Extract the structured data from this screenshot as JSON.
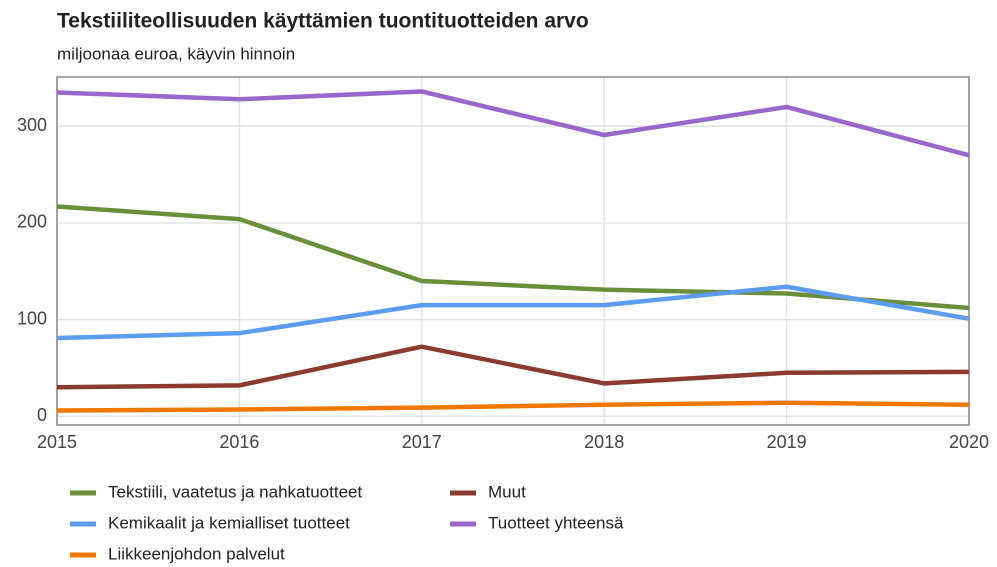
{
  "chart_data": {
    "type": "line",
    "title": "Tekstiiliteollisuuden käyttämien tuontituotteiden arvo",
    "subtitle": "miljoonaa euroa, käyvin hinnoin",
    "x": [
      2015,
      2016,
      2017,
      2018,
      2019,
      2020
    ],
    "xlim": [
      2015,
      2020
    ],
    "xticks": [
      2015,
      2016,
      2017,
      2018,
      2019,
      2020
    ],
    "ylim": [
      -9,
      351
    ],
    "yticks": [
      0,
      100,
      200,
      300
    ],
    "grid": true,
    "legend": "bottom",
    "series": [
      {
        "name": "Tekstiili, vaatetus ja nahkatuotteet",
        "color": "#6b8e3a",
        "values": [
          217,
          204,
          140,
          131,
          127,
          112
        ]
      },
      {
        "name": "Kemikaalit ja kemialliset tuotteet",
        "color": "#5b9cf0",
        "values": [
          81,
          86,
          115,
          115,
          134,
          101
        ]
      },
      {
        "name": "Liikkeenjohdon palvelut",
        "color": "#f07800",
        "values": [
          6,
          7,
          9,
          12,
          14,
          12
        ]
      },
      {
        "name": "Muut",
        "color": "#8b3a2f",
        "values": [
          30,
          32,
          72,
          34,
          45,
          46
        ]
      },
      {
        "name": "Tuotteet yhteensä",
        "color": "#9966cc",
        "values": [
          335,
          328,
          336,
          291,
          320,
          270
        ]
      }
    ]
  }
}
